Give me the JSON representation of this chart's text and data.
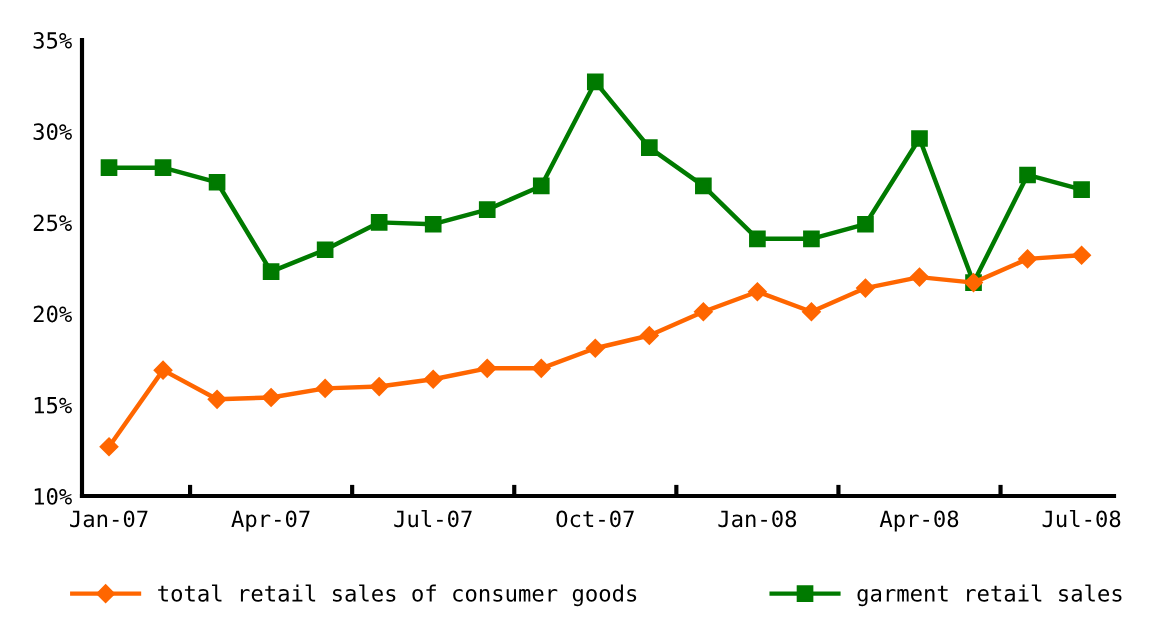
{
  "chart_data": {
    "type": "line",
    "categories": [
      "Jan-07",
      null,
      null,
      "Apr-07",
      null,
      null,
      "Jul-07",
      null,
      null,
      "Oct-07",
      null,
      null,
      "Jan-08",
      null,
      null,
      "Apr-08",
      null,
      null,
      "Jul-08"
    ],
    "series": [
      {
        "name": "total retail sales of consumer goods",
        "color": "#ff6600",
        "marker": "diamond",
        "values": [
          12.7,
          16.9,
          15.3,
          15.4,
          15.9,
          16.0,
          16.4,
          17.0,
          17.0,
          18.1,
          18.8,
          20.1,
          21.2,
          20.1,
          21.4,
          22.0,
          21.7,
          23.0,
          23.2
        ]
      },
      {
        "name": "garment retail sales",
        "color": "#007a00",
        "marker": "square",
        "values": [
          28.0,
          28.0,
          27.2,
          22.3,
          23.5,
          25.0,
          24.9,
          25.7,
          27.0,
          32.7,
          29.1,
          27.0,
          24.1,
          24.1,
          24.9,
          29.6,
          21.7,
          27.6,
          26.8
        ]
      }
    ],
    "ylim": [
      10,
      35
    ],
    "yticks": [
      {
        "value": 10,
        "label": "10%"
      },
      {
        "value": 15,
        "label": "15%"
      },
      {
        "value": 20,
        "label": "20%"
      },
      {
        "value": 25,
        "label": "25%"
      },
      {
        "value": 30,
        "label": "30%"
      },
      {
        "value": 35,
        "label": "35%"
      }
    ],
    "grid": false,
    "legend": "bottom",
    "line_style": "solid"
  }
}
